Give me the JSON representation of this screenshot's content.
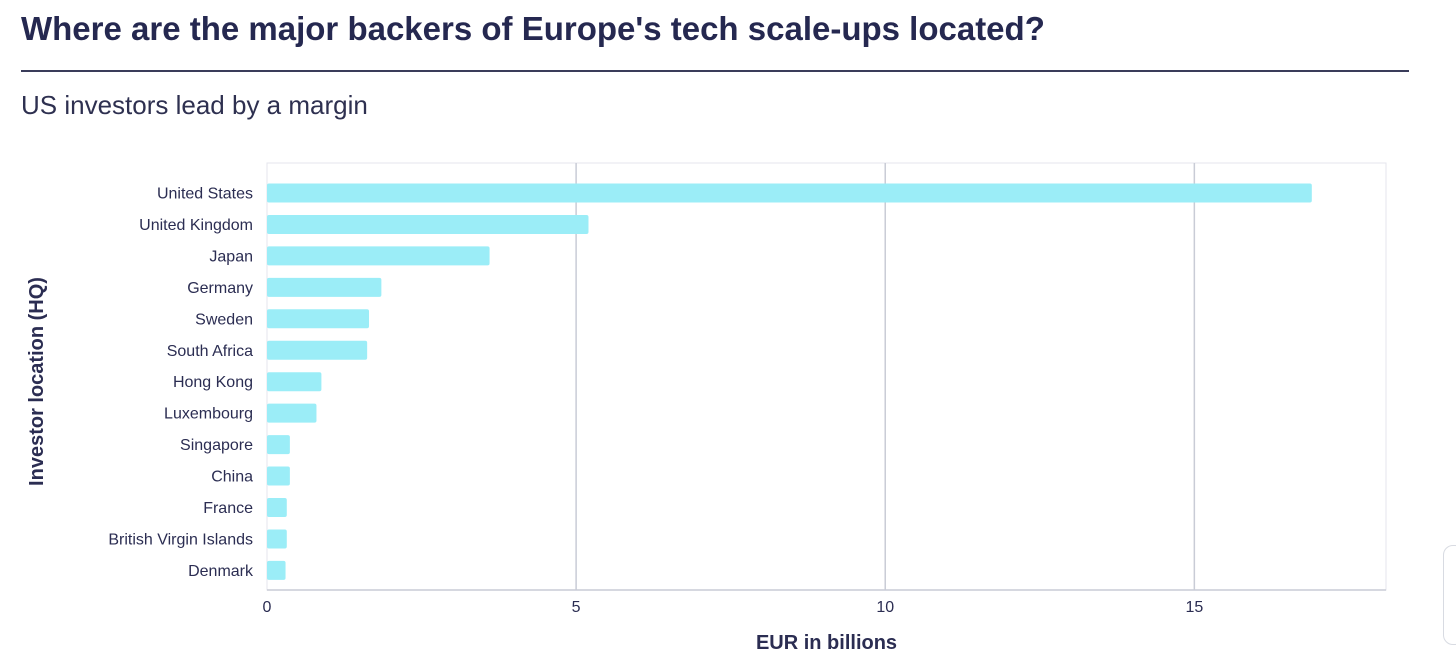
{
  "header": {
    "title": "Where are the major backers of Europe's tech scale-ups located?",
    "subtitle": "US investors lead by a margin"
  },
  "colors": {
    "bar": "#9bedf7",
    "grid": "#c9ccd6",
    "text": "#2b2d52"
  },
  "chart_data": {
    "type": "bar",
    "orientation": "horizontal",
    "categories": [
      "United States",
      "United Kingdom",
      "Japan",
      "Germany",
      "Sweden",
      "South Africa",
      "Hong Kong",
      "Luxembourg",
      "Singapore",
      "China",
      "France",
      "British Virgin Islands",
      "Denmark"
    ],
    "values": [
      16.9,
      5.2,
      3.6,
      1.85,
      1.65,
      1.62,
      0.88,
      0.8,
      0.37,
      0.37,
      0.32,
      0.32,
      0.3
    ],
    "xlabel": "EUR in billions",
    "ylabel": "Investor location (HQ)",
    "xlim": [
      0,
      18.1
    ],
    "xticks": [
      0,
      5,
      10,
      15
    ],
    "grid": "vertical",
    "legend": "none"
  }
}
